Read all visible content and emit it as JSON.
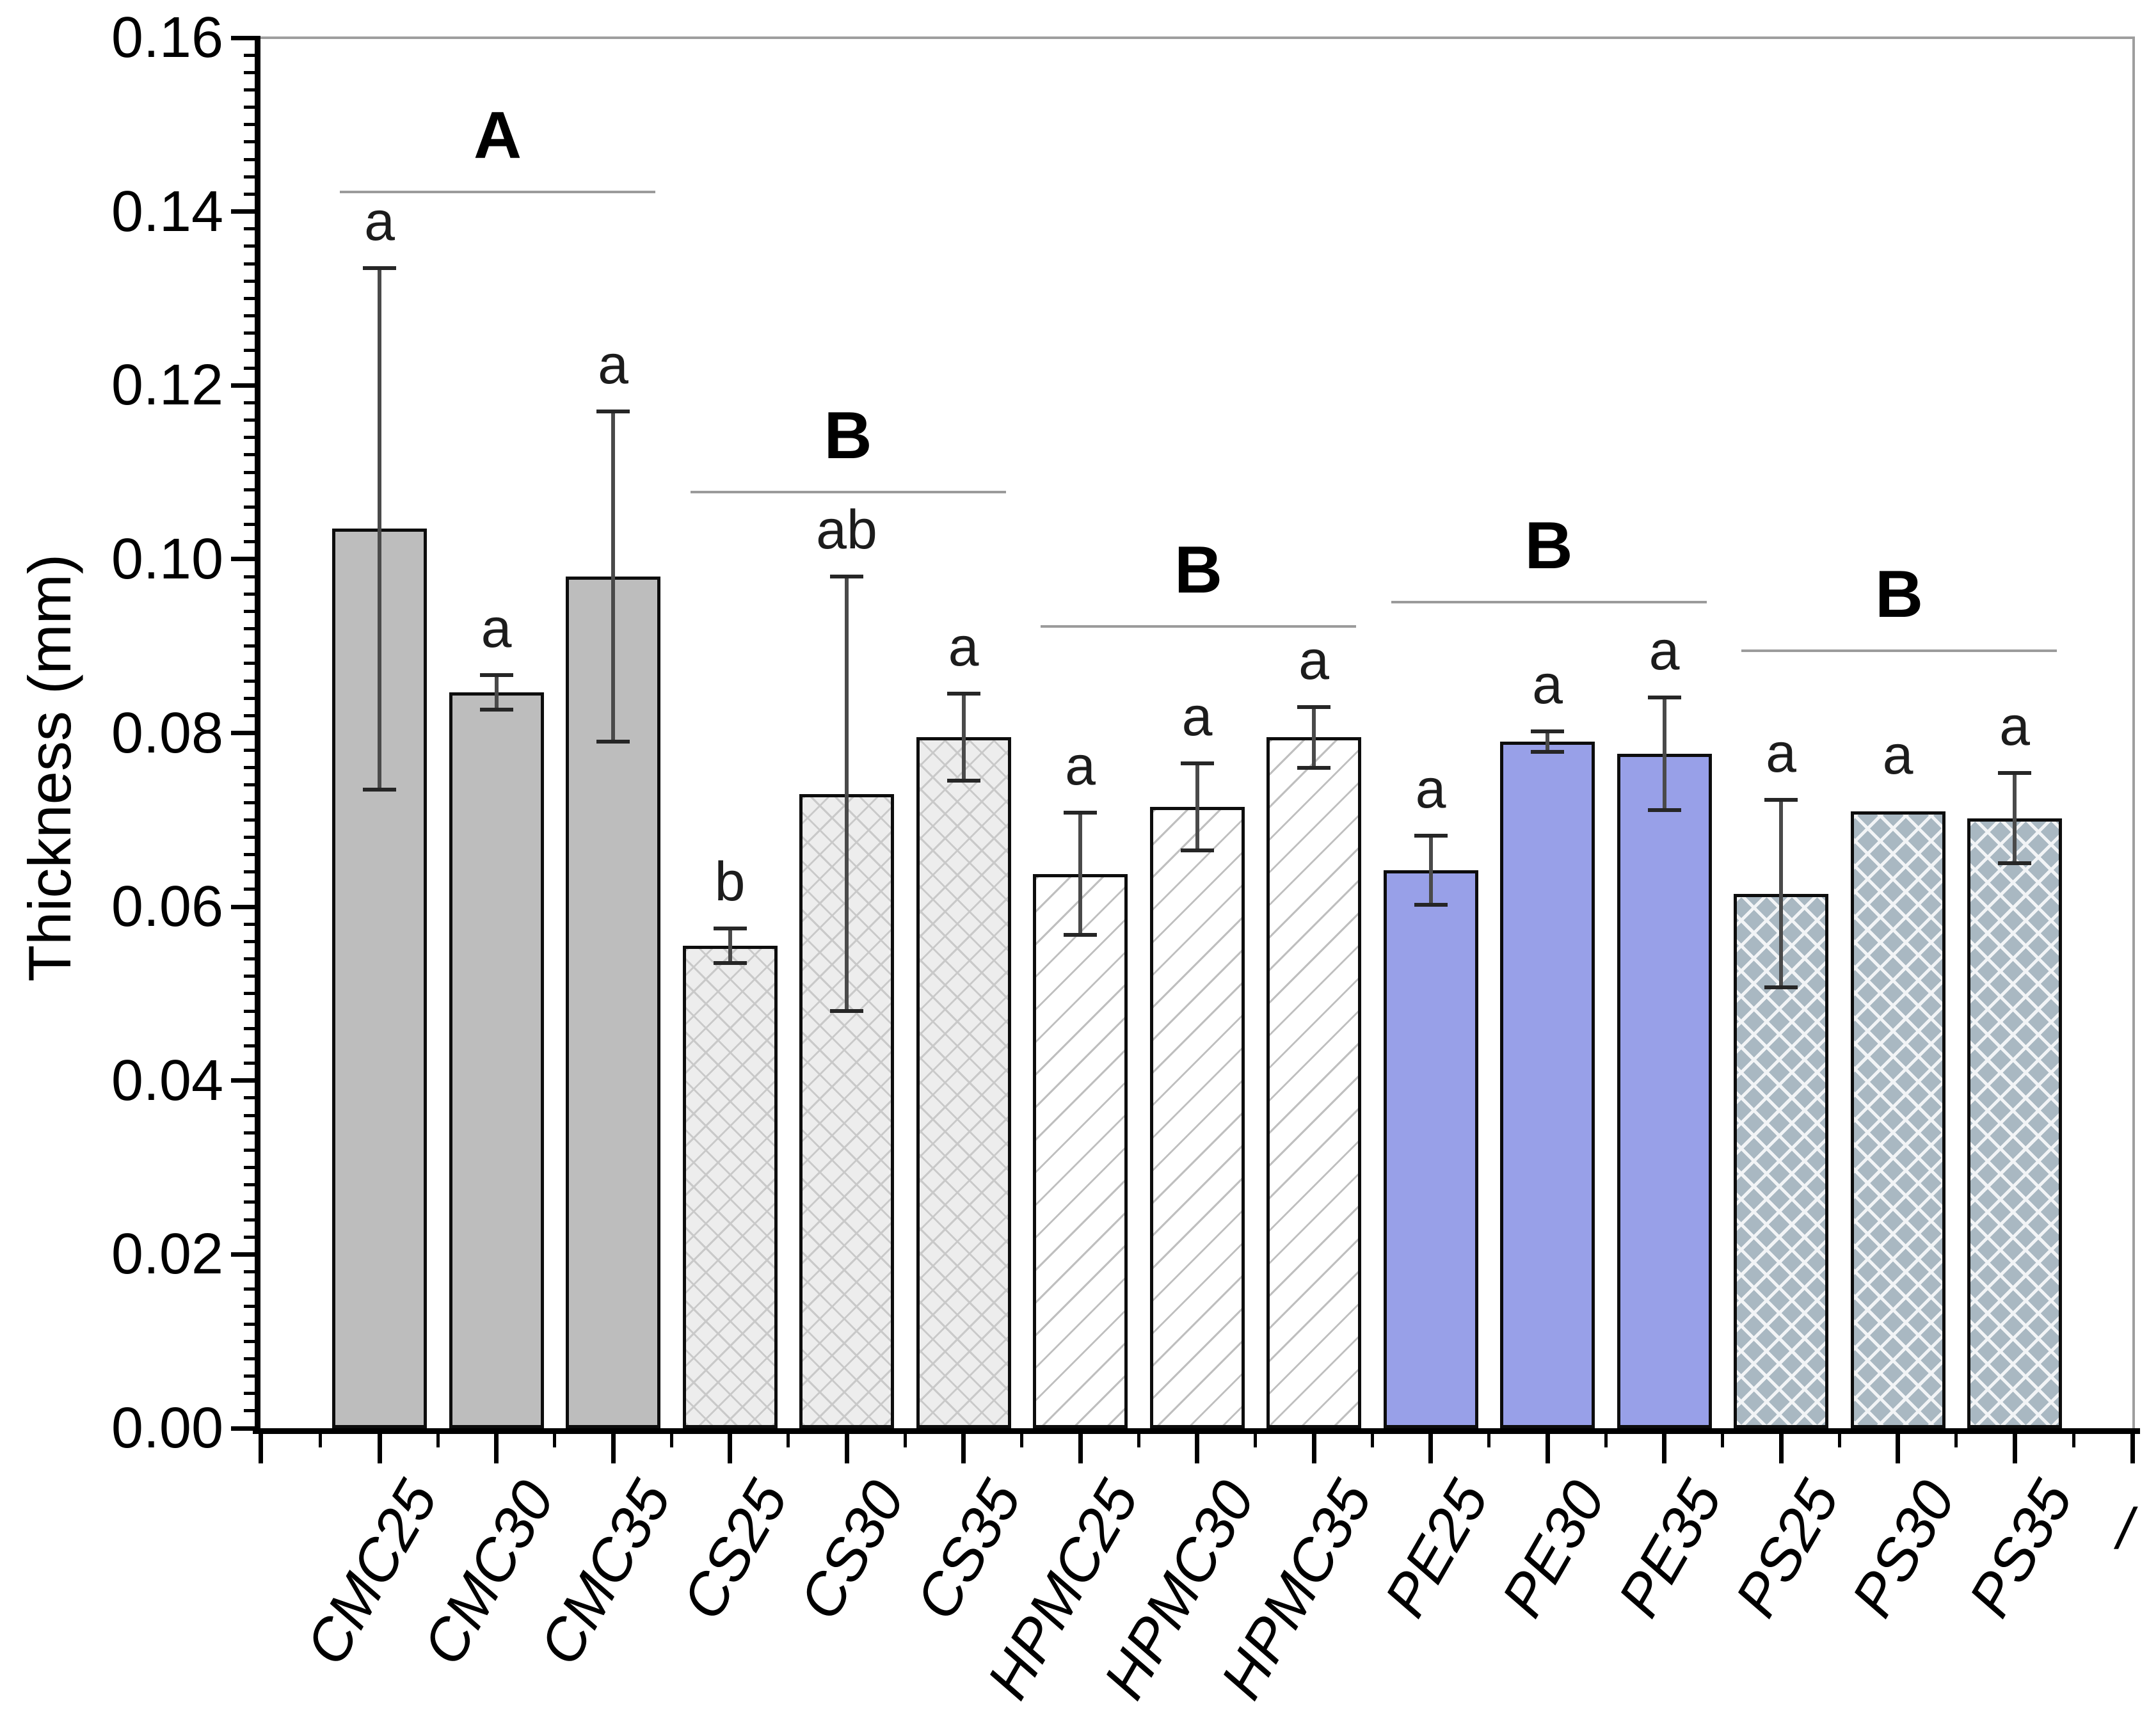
{
  "chart_data": {
    "type": "bar",
    "title": "",
    "xlabel": "",
    "ylabel": "Thickness (mm)",
    "ylim": [
      0,
      0.16
    ],
    "ytick_step": 0.02,
    "ytick_minor_step": 0.002,
    "ytick_labels": [
      "0.00",
      "0.02",
      "0.04",
      "0.06",
      "0.08",
      "0.10",
      "0.12",
      "0.14",
      "0.16"
    ],
    "grid": "off",
    "legend": "none",
    "categories": [
      "CMC25",
      "CMC30",
      "CMC35",
      "CS25",
      "CS30",
      "CS35",
      "HPMC25",
      "HPMC30",
      "HPMC35",
      "PE25",
      "PE30",
      "PE35",
      "PS25",
      "PS30",
      "PS35"
    ],
    "values": [
      0.1035,
      0.0847,
      0.098,
      0.0555,
      0.073,
      0.0795,
      0.0638,
      0.0715,
      0.0795,
      0.0642,
      0.079,
      0.0776,
      0.0615,
      0.071,
      0.0702
    ],
    "errors": [
      0.03,
      0.002,
      0.019,
      0.002,
      0.025,
      0.005,
      0.007,
      0.005,
      0.0035,
      0.004,
      0.0012,
      0.0065,
      0.0108,
      0.0,
      0.0052
    ],
    "sig_letters": [
      "a",
      "a",
      "a",
      "b",
      "ab",
      "a",
      "a",
      "a",
      "a",
      "a",
      "a",
      "a",
      "a",
      "a",
      "a"
    ],
    "bar_style_keys": [
      "CMC",
      "CMC",
      "CMC",
      "CS",
      "CS",
      "CS",
      "HPMC",
      "HPMC",
      "HPMC",
      "PE",
      "PE",
      "PE",
      "PS",
      "PS",
      "PS"
    ],
    "styles": {
      "CMC": {
        "type": "solid",
        "fill": "#bdbdbd"
      },
      "CS": {
        "type": "crosshatch",
        "fill": "#ededed",
        "line": "#c9c9c9",
        "line_width": 3,
        "period": 27
      },
      "HPMC": {
        "type": "diagonal",
        "fill": "#ffffff",
        "line": "#bfbfbf",
        "line_width": 3,
        "period": 36
      },
      "PE": {
        "type": "solid",
        "fill": "#98a0e8"
      },
      "PS": {
        "type": "crosshatch",
        "fill": "#a9b8c2",
        "line": "#f2f4f6",
        "line_width": 5,
        "period": 28
      }
    },
    "group_annotations": [
      {
        "label": "A",
        "from": 0,
        "to": 2,
        "line_value": 0.1424
      },
      {
        "label": "B",
        "from": 3,
        "to": 5,
        "line_value": 0.1079
      },
      {
        "label": "B",
        "from": 6,
        "to": 8,
        "line_value": 0.0924
      },
      {
        "label": "B",
        "from": 9,
        "to": 11,
        "line_value": 0.0952
      },
      {
        "label": "B",
        "from": 12,
        "to": 14,
        "line_value": 0.0896
      }
    ],
    "colors": {
      "axis": "#000000",
      "frame_gray": "#9e9e9e",
      "error_bar_line": "#4a4a4a",
      "error_bar_cap": "#262626",
      "group_line": "#9b9b9b",
      "bar_border": "#0d0d0d"
    },
    "corner_fragment": "/"
  }
}
